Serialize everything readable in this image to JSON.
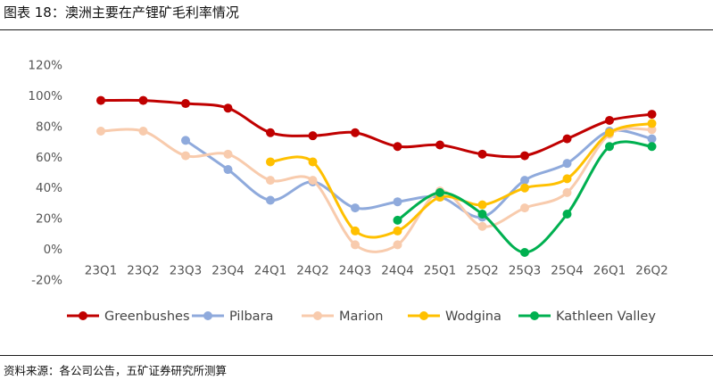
{
  "figure": {
    "title": "图表 18：澳洲主要在产锂矿毛利率情况",
    "source": "资料来源：各公司公告，五矿证券研究所测算"
  },
  "chart_data": {
    "type": "line",
    "categories": [
      "23Q1",
      "23Q2",
      "23Q3",
      "23Q4",
      "24Q1",
      "24Q2",
      "24Q3",
      "24Q4",
      "25Q1",
      "25Q2",
      "25Q3",
      "25Q4",
      "26Q1",
      "26Q2"
    ],
    "ylim": [
      -20,
      120
    ],
    "yticks": [
      "-20%",
      "0%",
      "20%",
      "40%",
      "60%",
      "80%",
      "100%",
      "120%"
    ],
    "ytick_values": [
      -20,
      0,
      20,
      40,
      60,
      80,
      100,
      120
    ],
    "grid": false,
    "smooth": true,
    "legend_position": "bottom",
    "series": [
      {
        "name": "Greenbushes",
        "color": "#C00000",
        "values": [
          97,
          97,
          95,
          92,
          76,
          74,
          76,
          67,
          68,
          62,
          61,
          72,
          84,
          88
        ]
      },
      {
        "name": "Pilbara",
        "color": "#8FAADC",
        "values": [
          null,
          null,
          71,
          52,
          32,
          44,
          27,
          31,
          34,
          21,
          45,
          56,
          77,
          72
        ]
      },
      {
        "name": "Marion",
        "color": "#F8CBAD",
        "values": [
          77,
          77,
          61,
          62,
          45,
          45,
          3,
          3,
          38,
          15,
          27,
          37,
          75,
          78
        ]
      },
      {
        "name": "Wodgina",
        "color": "#FFC000",
        "values": [
          null,
          null,
          null,
          null,
          57,
          57,
          12,
          12,
          34,
          29,
          40,
          46,
          76,
          82
        ]
      },
      {
        "name": "Kathleen Valley",
        "color": "#00B050",
        "values": [
          null,
          null,
          null,
          null,
          null,
          null,
          null,
          19,
          37,
          23,
          -2,
          23,
          67,
          67
        ]
      }
    ]
  }
}
